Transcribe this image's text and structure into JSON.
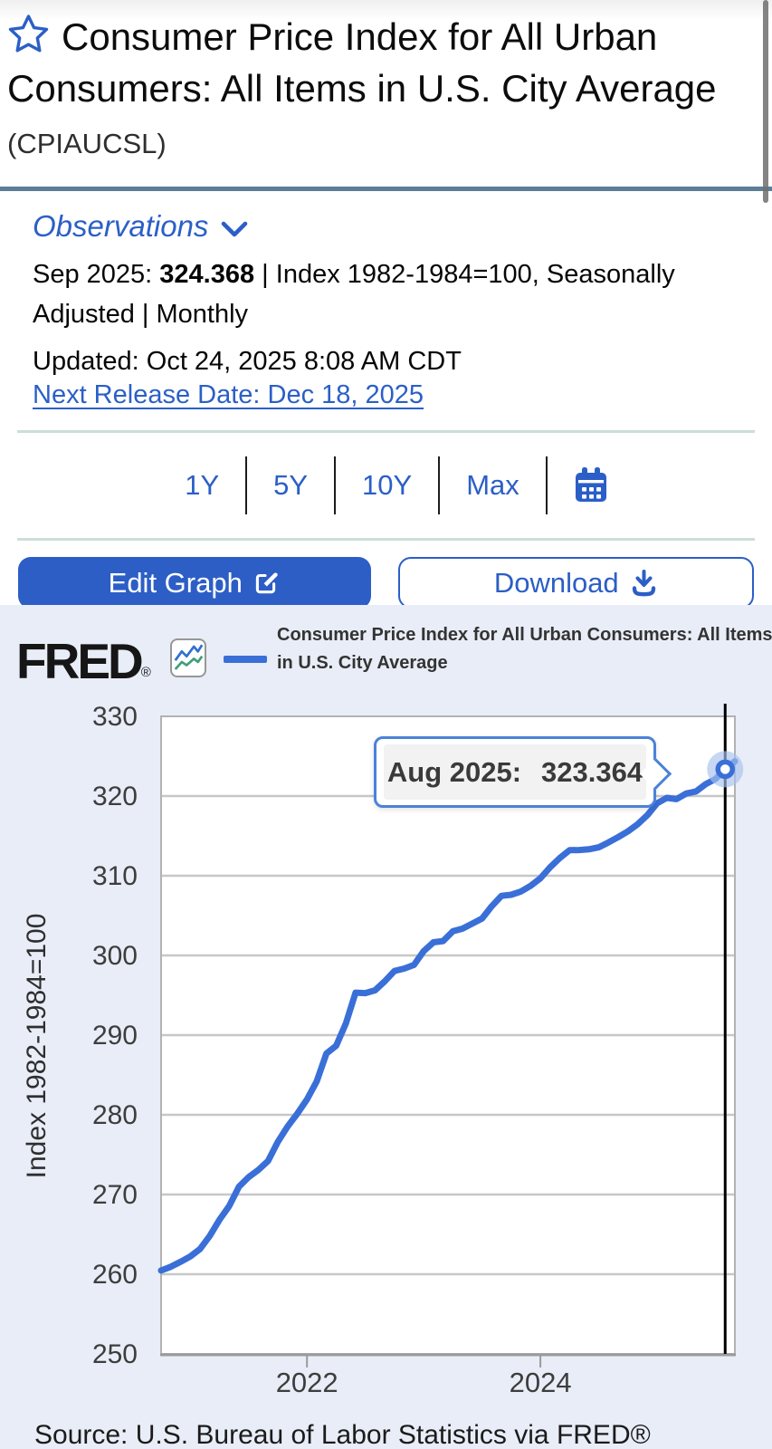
{
  "page": {
    "title": "Consumer Price Index for All Urban Consumers: All Items in U.S. City Average",
    "ticker": "(CPIAUCSL)"
  },
  "observations": {
    "link_label": "Observations",
    "obs_label": "Sep 2025:",
    "obs_value": "324.368",
    "obs_suffix": " | Index 1982-1984=100, Seasonally Adjusted | Monthly",
    "updated": "Updated: Oct 24, 2025 8:08 AM CDT",
    "next_release": "Next Release Date: Dec 18, 2025"
  },
  "range_selector": {
    "options": [
      "1Y",
      "5Y",
      "10Y",
      "Max"
    ],
    "calendar_icon": "calendar-icon"
  },
  "actions": {
    "edit_label": "Edit Graph",
    "download_label": "Download"
  },
  "chart_header": {
    "brand": "FRED",
    "reg": "®",
    "series_label": "Consumer Price Index for All Urban Consumers: All Items in U.S. City Average",
    "legend_color": "#3a6fd8"
  },
  "tooltip": {
    "label": "Aug 2025:",
    "value": "323.364"
  },
  "source": "Source: U.S. Bureau of Labor Statistics via FRED®",
  "colors": {
    "accent_blue": "#2b5fc7",
    "line_blue": "#3a6fd8",
    "chart_bg": "#e8edf7",
    "steel_divider": "#5d7e96",
    "light_divider": "#cdddd8"
  },
  "chart_data": {
    "type": "line",
    "title": "Consumer Price Index for All Urban Consumers: All Items in U.S. City Average",
    "ylabel": "Index 1982-1984=100",
    "xlabel": "",
    "grid": true,
    "legend_position": "top",
    "ylim": [
      250,
      330
    ],
    "yticks": [
      330,
      320,
      310,
      300,
      290,
      280,
      270,
      260,
      250
    ],
    "x_start": "2020-10",
    "x_end": "2025-09",
    "x_frequency": "monthly",
    "xticks": [
      {
        "label": "2022",
        "month_index": 15
      },
      {
        "label": "2024",
        "month_index": 39
      }
    ],
    "series": [
      {
        "name": "CPIAUCSL",
        "color": "#3a6fd8",
        "values": [
          260.462,
          260.927,
          261.56,
          262.231,
          263.161,
          264.793,
          266.832,
          268.551,
          270.98,
          272.184,
          273.092,
          274.214,
          276.59,
          278.524,
          280.126,
          281.933,
          284.182,
          287.708,
          288.663,
          291.474,
          295.328,
          295.271,
          295.62,
          296.761,
          298.062,
          298.349,
          298.808,
          300.536,
          301.648,
          301.808,
          303.032,
          303.365,
          304.003,
          304.628,
          306.187,
          307.481,
          307.619,
          308.024,
          308.742,
          309.685,
          311.054,
          312.23,
          313.207,
          313.225,
          313.318,
          313.566,
          314.186,
          314.851,
          315.564,
          316.449,
          317.603,
          319.086,
          319.775,
          319.615,
          320.321,
          320.58,
          321.5,
          322.132,
          323.364,
          324.368
        ]
      }
    ],
    "highlight": {
      "x": "2025-08",
      "month_index": 58,
      "value": 323.364
    }
  }
}
